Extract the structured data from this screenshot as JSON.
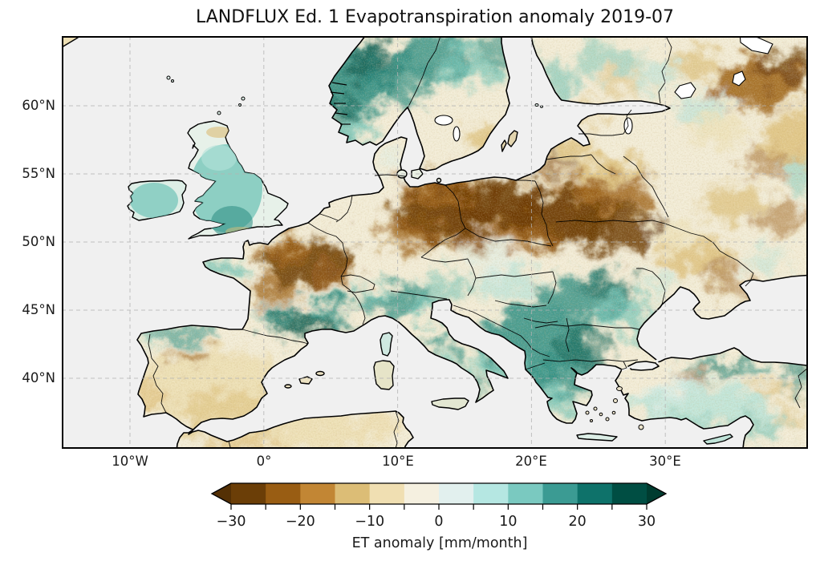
{
  "figure": {
    "title": "LANDFLUX Ed. 1 Evapotranspiration anomaly 2019-07",
    "background_color": "#ffffff"
  },
  "axes": {
    "lat_tick_labels": [
      "60°N",
      "55°N",
      "50°N",
      "45°N",
      "40°N"
    ],
    "lon_tick_labels": [
      "10°W",
      "0°",
      "10°E",
      "20°E",
      "30°E"
    ]
  },
  "map": {
    "ocean_color": "#f0f0f0",
    "lake_color": "#ffffff",
    "coastline_color": "#000000",
    "gridline_color": "#b3b3b3",
    "gridline_style": "dashed",
    "frame_color": "#000000",
    "extent": {
      "lon_min": -15.2,
      "lon_max": 40.6,
      "lat_min": 34.8,
      "lat_max": 65.1
    },
    "colors": {
      "land": "#f3edd8",
      "bd": "#6b3a06",
      "bm": "#9a5d10",
      "bl": "#c28a34",
      "bt": "#dcbd76",
      "bp": "#eddfb4",
      "td": "#0b5a4e",
      "tm": "#2b8d82",
      "tl": "#6fc3b6",
      "tp": "#b5e3da",
      "tvp": "#ddf0ea"
    }
  },
  "colorbar": {
    "label": "ET anomaly [mm/month]",
    "tick_labels": [
      "−30",
      "−20",
      "−10",
      "0",
      "10",
      "20",
      "30"
    ],
    "boundaries": [
      -30,
      -25,
      -20,
      -15,
      -10,
      -5,
      0,
      5,
      10,
      15,
      20,
      25,
      30
    ],
    "segment_colors": [
      "#6b3e07",
      "#995d13",
      "#c28634",
      "#dcbd76",
      "#f0dfb2",
      "#f5f0e0",
      "#e2f0ee",
      "#b5e7e2",
      "#7ac9c0",
      "#3b9b93",
      "#0e726a",
      "#004e43"
    ],
    "extend_low_color": "#543005",
    "extend_high_color": "#003c30",
    "outline_color": "#000000"
  },
  "chart_data": {
    "type": "heatmap",
    "title": "LANDFLUX Ed. 1 Evapotranspiration anomaly 2019-07",
    "variable": "Evapotranspiration (ET) anomaly",
    "units": "mm/month",
    "colormap": "BrBG discrete (brown = negative / drier, teal = positive / wetter)",
    "value_range": [
      -30,
      30
    ],
    "discrete_step": 5,
    "colorbar_extends_both_ends": true,
    "geographic_extent": {
      "lon_min": -15.2,
      "lon_max": 40.6,
      "lat_min": 34.8,
      "lat_max": 65.1
    },
    "x_axis": {
      "label": "",
      "tick_labels": [
        "10°W",
        "0°",
        "10°E",
        "20°E",
        "30°E"
      ]
    },
    "y_axis": {
      "label": "",
      "tick_labels": [
        "60°N",
        "55°N",
        "50°N",
        "45°N",
        "40°N"
      ]
    },
    "grid": "dashed lat/lon graticule every 5 degrees shown at labeled ticks",
    "regions": [
      {
        "region": "Germany",
        "approx_anomaly_mm_month": -28
      },
      {
        "region": "Poland",
        "approx_anomaly_mm_month": -28
      },
      {
        "region": "Czechia",
        "approx_anomaly_mm_month": -15
      },
      {
        "region": "Central / NE France",
        "approx_anomaly_mm_month": -22
      },
      {
        "region": "Brittany (NW France)",
        "approx_anomaly_mm_month": 8
      },
      {
        "region": "Southern France (Mediterranean)",
        "approx_anomaly_mm_month": 18
      },
      {
        "region": "Iberian Peninsula interior",
        "approx_anomaly_mm_month": -7
      },
      {
        "region": "Northern Spain coast",
        "approx_anomaly_mm_month": 8
      },
      {
        "region": "Great Britain",
        "approx_anomaly_mm_month": 8
      },
      {
        "region": "Ireland",
        "approx_anomaly_mm_month": 8
      },
      {
        "region": "Norway",
        "approx_anomaly_mm_month": 18
      },
      {
        "region": "Northern Sweden",
        "approx_anomaly_mm_month": 12
      },
      {
        "region": "SE Sweden",
        "approx_anomaly_mm_month": -8
      },
      {
        "region": "Denmark",
        "approx_anomaly_mm_month": -2
      },
      {
        "region": "Finland",
        "approx_anomaly_mm_month": 5
      },
      {
        "region": "Baltic states / Belarus",
        "approx_anomaly_mm_month": -12
      },
      {
        "region": "NW Russia",
        "approx_anomaly_mm_month": -15
      },
      {
        "region": "Ukraine",
        "approx_anomaly_mm_month": -8
      },
      {
        "region": "Alps",
        "approx_anomaly_mm_month": 10
      },
      {
        "region": "Italy (Apennines and south)",
        "approx_anomaly_mm_month": 10
      },
      {
        "region": "Western Balkans (Croatia/Bosnia/Serbia)",
        "approx_anomaly_mm_month": 18
      },
      {
        "region": "Carpathians / Romania",
        "approx_anomaly_mm_month": 15
      },
      {
        "region": "Bulgaria",
        "approx_anomaly_mm_month": 12
      },
      {
        "region": "Greece",
        "approx_anomaly_mm_month": 12
      },
      {
        "region": "Hungary",
        "approx_anomaly_mm_month": 8
      },
      {
        "region": "Turkey",
        "approx_anomaly_mm_month": 8
      },
      {
        "region": "Turkish Black Sea coast",
        "approx_anomaly_mm_month": 18
      },
      {
        "region": "North Africa coast",
        "approx_anomaly_mm_month": -4
      }
    ]
  }
}
